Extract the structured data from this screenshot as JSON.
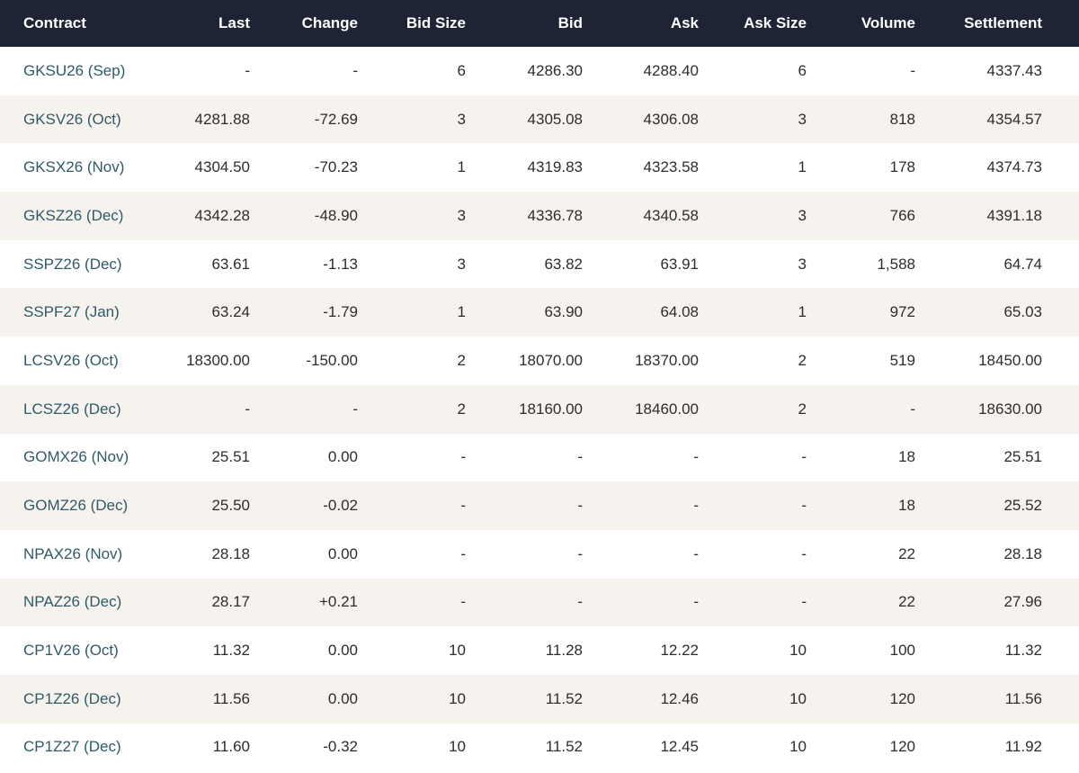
{
  "columns": {
    "contract": "Contract",
    "last": "Last",
    "change": "Change",
    "bid_size": "Bid Size",
    "bid": "Bid",
    "ask": "Ask",
    "ask_size": "Ask Size",
    "volume": "Volume",
    "settlement": "Settlement"
  },
  "rows": [
    {
      "contract": "GKSU26 (Sep)",
      "last": "-",
      "change": "-",
      "bid_size": "6",
      "bid": "4286.30",
      "ask": "4288.40",
      "ask_size": "6",
      "volume": "-",
      "settlement": "4337.43"
    },
    {
      "contract": "GKSV26 (Oct)",
      "last": "4281.88",
      "change": "-72.69",
      "bid_size": "3",
      "bid": "4305.08",
      "ask": "4306.08",
      "ask_size": "3",
      "volume": "818",
      "settlement": "4354.57"
    },
    {
      "contract": "GKSX26 (Nov)",
      "last": "4304.50",
      "change": "-70.23",
      "bid_size": "1",
      "bid": "4319.83",
      "ask": "4323.58",
      "ask_size": "1",
      "volume": "178",
      "settlement": "4374.73"
    },
    {
      "contract": "GKSZ26 (Dec)",
      "last": "4342.28",
      "change": "-48.90",
      "bid_size": "3",
      "bid": "4336.78",
      "ask": "4340.58",
      "ask_size": "3",
      "volume": "766",
      "settlement": "4391.18"
    },
    {
      "contract": "SSPZ26 (Dec)",
      "last": "63.61",
      "change": "-1.13",
      "bid_size": "3",
      "bid": "63.82",
      "ask": "63.91",
      "ask_size": "3",
      "volume": "1,588",
      "settlement": "64.74"
    },
    {
      "contract": "SSPF27 (Jan)",
      "last": "63.24",
      "change": "-1.79",
      "bid_size": "1",
      "bid": "63.90",
      "ask": "64.08",
      "ask_size": "1",
      "volume": "972",
      "settlement": "65.03"
    },
    {
      "contract": "LCSV26 (Oct)",
      "last": "18300.00",
      "change": "-150.00",
      "bid_size": "2",
      "bid": "18070.00",
      "ask": "18370.00",
      "ask_size": "2",
      "volume": "519",
      "settlement": "18450.00"
    },
    {
      "contract": "LCSZ26 (Dec)",
      "last": "-",
      "change": "-",
      "bid_size": "2",
      "bid": "18160.00",
      "ask": "18460.00",
      "ask_size": "2",
      "volume": "-",
      "settlement": "18630.00"
    },
    {
      "contract": "GOMX26 (Nov)",
      "last": "25.51",
      "change": "0.00",
      "bid_size": "-",
      "bid": "-",
      "ask": "-",
      "ask_size": "-",
      "volume": "18",
      "settlement": "25.51"
    },
    {
      "contract": "GOMZ26 (Dec)",
      "last": "25.50",
      "change": "-0.02",
      "bid_size": "-",
      "bid": "-",
      "ask": "-",
      "ask_size": "-",
      "volume": "18",
      "settlement": "25.52"
    },
    {
      "contract": "NPAX26 (Nov)",
      "last": "28.18",
      "change": "0.00",
      "bid_size": "-",
      "bid": "-",
      "ask": "-",
      "ask_size": "-",
      "volume": "22",
      "settlement": "28.18"
    },
    {
      "contract": "NPAZ26 (Dec)",
      "last": "28.17",
      "change": "+0.21",
      "bid_size": "-",
      "bid": "-",
      "ask": "-",
      "ask_size": "-",
      "volume": "22",
      "settlement": "27.96"
    },
    {
      "contract": "CP1V26 (Oct)",
      "last": "11.32",
      "change": "0.00",
      "bid_size": "10",
      "bid": "11.28",
      "ask": "12.22",
      "ask_size": "10",
      "volume": "100",
      "settlement": "11.32"
    },
    {
      "contract": "CP1Z26 (Dec)",
      "last": "11.56",
      "change": "0.00",
      "bid_size": "10",
      "bid": "11.52",
      "ask": "12.46",
      "ask_size": "10",
      "volume": "120",
      "settlement": "11.56"
    },
    {
      "contract": "CP1Z27 (Dec)",
      "last": "11.60",
      "change": "-0.32",
      "bid_size": "10",
      "bid": "11.52",
      "ask": "12.45",
      "ask_size": "10",
      "volume": "120",
      "settlement": "11.92"
    }
  ],
  "colors": {
    "header_bg": "#1f2435",
    "header_text": "#ffffff",
    "row_alt_bg": "#f6f3ef",
    "contract_link": "#2f5a66"
  }
}
